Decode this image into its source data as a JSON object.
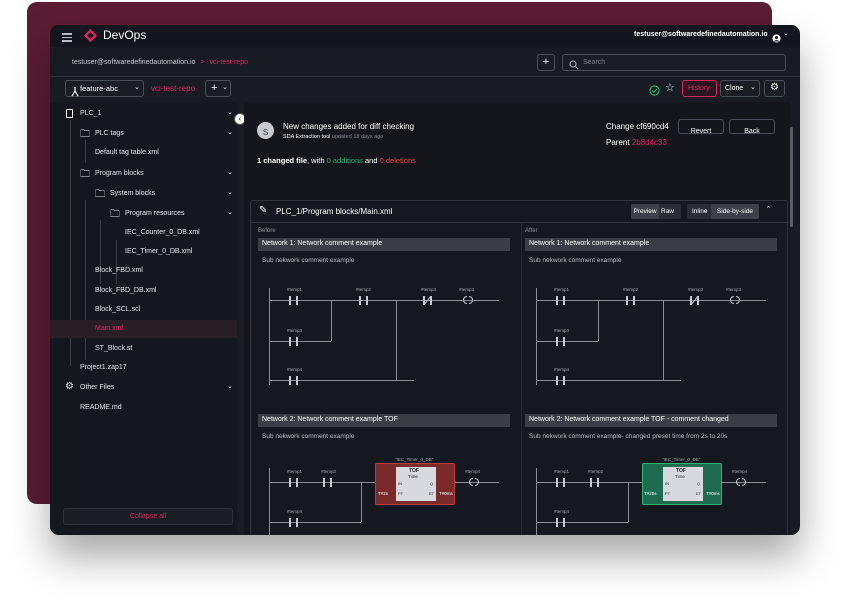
{
  "app": {
    "title": "DevOps",
    "user_email": "testuser@softwaredefinedautomation.io"
  },
  "breadcrumb": {
    "user": "testuser@softwaredefinedautomation.io",
    "separator": ">",
    "repo": "vci-test-repo"
  },
  "search": {
    "placeholder": "Search"
  },
  "toolbar": {
    "branch": "feature-abc",
    "repo": "vci-test-repo",
    "add_label": "+",
    "history_label": "History",
    "clone_label": "Clone"
  },
  "sidebar": {
    "items": [
      {
        "label": "PLC_1",
        "icon": "device-icon"
      },
      {
        "label": "PLC tags",
        "icon": "folder-icon"
      },
      {
        "label": "Default tag table.xml"
      },
      {
        "label": "Program blocks",
        "icon": "folder-icon"
      },
      {
        "label": "System blocks",
        "icon": "folder-icon"
      },
      {
        "label": "Program resources",
        "icon": "folder-icon"
      },
      {
        "label": "IEC_Counter_0_DB.xml"
      },
      {
        "label": "IEC_Timer_0_DB.xml"
      },
      {
        "label": "Block_FBD.xml"
      },
      {
        "label": "Block_FBD_DB.xml"
      },
      {
        "label": "Block_SCL.scl"
      },
      {
        "label": "Main.xml"
      },
      {
        "label": "ST_Block.st"
      },
      {
        "label": "Project1.zap17"
      },
      {
        "label": "Other Files",
        "icon": "gear-icon"
      },
      {
        "label": "README.md"
      }
    ],
    "collapse_label": "Collapse all"
  },
  "commit": {
    "avatar": "S",
    "message": "New changes added for diff checking",
    "author": "SDA Extraction tool",
    "updated": "updated 18 days ago",
    "change_label": "Change cf690cd4",
    "parent_label": "Parent",
    "parent_hash": "2b8d4c33",
    "revert_label": "Revert",
    "back_label": "Back",
    "summary_changed": "1 changed file",
    "summary_with": ", with",
    "summary_additions": "0 additions",
    "summary_and": "and",
    "summary_deletions": "0 deletions"
  },
  "diff": {
    "file_path": "PLC_1/Program blocks/Main.xml",
    "preview_label": "Preview",
    "raw_label": "Raw",
    "inline_label": "Inline",
    "sidebyside_label": "Side-by-side",
    "before_label": "Before",
    "after_label": "After",
    "before": {
      "net1_title": "Network 1:  Network comment example",
      "net1_sub": "Sub nekwork comment example",
      "net2_title": "Network 2:  Network comment example TOF",
      "net2_sub": "Sub nekwork comment example",
      "preset": "T#2s"
    },
    "after": {
      "net1_title": "Network 1:  Network comment example",
      "net1_sub": "Sub nekwork comment example",
      "net2_title": "Network 2:  Network comment example TOF - comment changed",
      "net2_sub": "Sub nekwork comment example- changed preset time from 2s to 20s",
      "preset": "T#20s"
    },
    "ladder": {
      "temp1": "#temp1",
      "temp2": "#temp2",
      "temp3": "#temp3",
      "temp4": "#temp4",
      "timer_db": "\"IEC_Timer_0_DB\"",
      "tof": "TOF",
      "time": "Time",
      "in": "IN",
      "q": "Q",
      "pt": "PT",
      "et": "ET",
      "et_val": "T#0ms"
    }
  },
  "colors": {
    "accent": "#e0245e",
    "addition": "#2bb673",
    "deletion": "#e04848",
    "change_before": "#7a2a2a",
    "change_after": "#1f6b4f"
  }
}
